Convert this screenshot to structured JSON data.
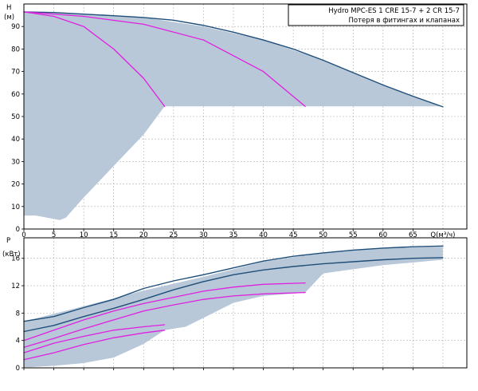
{
  "legend": {
    "line1": "Hydro MPC-ES 1 CRE 15-7  +  2 CR 15-7",
    "line2": "Потеря в фитингах и клапанах"
  },
  "colors": {
    "area": "#B8C8D8",
    "grid": "#B0B0B0",
    "system_curve": "#1F4E79",
    "pump_curve": "#E020E0",
    "axis": "#000000"
  },
  "chart_data": [
    {
      "type": "line",
      "name": "head",
      "ylabel_top": "H",
      "ylabel_unit": "(м)",
      "xlabel": "Q(м³/ч)",
      "xlim": [
        0,
        74
      ],
      "ylim": [
        0,
        100
      ],
      "xticks": [
        0,
        5,
        10,
        15,
        20,
        25,
        30,
        35,
        40,
        45,
        50,
        55,
        60,
        65
      ],
      "xtick_labels": [
        "0",
        "5",
        "10",
        "15",
        "20",
        "25",
        "30",
        "35",
        "40",
        "45",
        "50",
        "55",
        "60",
        "65",
        "Q(м³/ч)"
      ],
      "yticks": [
        0,
        10,
        20,
        30,
        40,
        50,
        60,
        70,
        80,
        90
      ],
      "grid": true,
      "area": {
        "upper": [
          [
            0,
            96.5
          ],
          [
            10,
            95.5
          ],
          [
            20,
            94
          ],
          [
            30,
            90
          ],
          [
            40,
            84
          ],
          [
            50,
            75
          ],
          [
            60,
            64
          ],
          [
            70,
            54.3
          ]
        ],
        "lower": [
          [
            70,
            54.5
          ],
          [
            23.5,
            54.5
          ],
          [
            20,
            42
          ],
          [
            15,
            28
          ],
          [
            10,
            14
          ],
          [
            7,
            5
          ],
          [
            6,
            4
          ],
          [
            2,
            6
          ],
          [
            0,
            6
          ]
        ]
      },
      "series": [
        {
          "role": "max",
          "color": "dark",
          "points": [
            [
              0,
              96.5
            ],
            [
              5,
              96.2
            ],
            [
              10,
              95.5
            ],
            [
              15,
              94.8
            ],
            [
              20,
              94
            ],
            [
              25,
              92.8
            ],
            [
              30,
              90.5
            ],
            [
              35,
              87.5
            ],
            [
              40,
              84
            ],
            [
              45,
              80
            ],
            [
              50,
              75
            ],
            [
              55,
              69.5
            ],
            [
              60,
              64
            ],
            [
              65,
              59
            ],
            [
              70,
              54.3
            ]
          ]
        },
        {
          "role": "pump-1",
          "color": "magenta",
          "points": [
            [
              0,
              96.5
            ],
            [
              5,
              94.5
            ],
            [
              10,
              90
            ],
            [
              15,
              80
            ],
            [
              20,
              67
            ],
            [
              23.5,
              54.5
            ]
          ]
        },
        {
          "role": "pump-2",
          "color": "magenta",
          "points": [
            [
              0,
              96.5
            ],
            [
              10,
              94.5
            ],
            [
              20,
              91
            ],
            [
              30,
              84
            ],
            [
              40,
              70
            ],
            [
              47,
              54.5
            ]
          ]
        }
      ]
    },
    {
      "type": "line",
      "name": "power",
      "ylabel_top": "P",
      "ylabel_unit": "(кВт)",
      "xlim": [
        0,
        74
      ],
      "ylim": [
        0,
        19
      ],
      "xticks": [
        0,
        5,
        10,
        15,
        20,
        25,
        30,
        35,
        40,
        45,
        50,
        55,
        60,
        65
      ],
      "yticks": [
        0,
        4,
        8,
        12,
        16
      ],
      "grid": true,
      "area": {
        "upper": [
          [
            0,
            6.8
          ],
          [
            10,
            9
          ],
          [
            20,
            11.3
          ],
          [
            30,
            13.3
          ],
          [
            40,
            15.5
          ],
          [
            50,
            16.8
          ],
          [
            60,
            17.5
          ],
          [
            70,
            17.7
          ]
        ],
        "lower": [
          [
            70,
            15.8
          ],
          [
            60,
            15
          ],
          [
            50,
            13.8
          ],
          [
            47,
            11
          ],
          [
            40,
            10.5
          ],
          [
            35,
            9.5
          ],
          [
            30,
            7.3
          ],
          [
            27,
            6
          ],
          [
            23.5,
            5.5
          ],
          [
            20,
            3.5
          ],
          [
            15,
            1.5
          ],
          [
            10,
            0.7
          ],
          [
            5,
            0.3
          ],
          [
            1,
            0.1
          ],
          [
            0,
            0.1
          ]
        ]
      },
      "series": [
        {
          "role": "max-upper",
          "color": "dark",
          "points": [
            [
              0,
              6.8
            ],
            [
              5,
              7.5
            ],
            [
              10,
              8.8
            ],
            [
              15,
              10
            ],
            [
              20,
              11.6
            ],
            [
              25,
              12.7
            ],
            [
              30,
              13.6
            ],
            [
              35,
              14.6
            ],
            [
              40,
              15.6
            ],
            [
              45,
              16.3
            ],
            [
              50,
              16.8
            ],
            [
              55,
              17.2
            ],
            [
              60,
              17.5
            ],
            [
              65,
              17.7
            ],
            [
              70,
              17.8
            ]
          ]
        },
        {
          "role": "max-lower",
          "color": "dark",
          "points": [
            [
              0,
              5.3
            ],
            [
              5,
              6.2
            ],
            [
              10,
              7.5
            ],
            [
              15,
              8.7
            ],
            [
              20,
              10
            ],
            [
              25,
              11.4
            ],
            [
              30,
              12.6
            ],
            [
              35,
              13.6
            ],
            [
              40,
              14.3
            ],
            [
              45,
              14.8
            ],
            [
              50,
              15.2
            ],
            [
              55,
              15.5
            ],
            [
              60,
              15.8
            ],
            [
              65,
              16
            ],
            [
              70,
              16.1
            ]
          ]
        },
        {
          "role": "pump-a",
          "color": "magenta",
          "points": [
            [
              0,
              4
            ],
            [
              5,
              5.5
            ],
            [
              10,
              7
            ],
            [
              15,
              8.3
            ],
            [
              20,
              9.4
            ],
            [
              25,
              10.3
            ],
            [
              30,
              11.2
            ],
            [
              35,
              11.8
            ],
            [
              40,
              12.2
            ],
            [
              47,
              12.4
            ]
          ]
        },
        {
          "role": "pump-b",
          "color": "magenta",
          "points": [
            [
              0,
              3
            ],
            [
              5,
              4.3
            ],
            [
              10,
              5.7
            ],
            [
              15,
              7
            ],
            [
              20,
              8.3
            ],
            [
              25,
              9.2
            ],
            [
              30,
              10
            ],
            [
              35,
              10.5
            ],
            [
              40,
              10.8
            ],
            [
              47,
              11
            ]
          ]
        },
        {
          "role": "pump-c",
          "color": "magenta",
          "points": [
            [
              0,
              2.2
            ],
            [
              5,
              3.6
            ],
            [
              10,
              4.6
            ],
            [
              15,
              5.5
            ],
            [
              20,
              6
            ],
            [
              23.5,
              6.3
            ]
          ]
        },
        {
          "role": "pump-d",
          "color": "magenta",
          "points": [
            [
              0,
              1.2
            ],
            [
              5,
              2.2
            ],
            [
              10,
              3.4
            ],
            [
              15,
              4.4
            ],
            [
              20,
              5.1
            ],
            [
              23.5,
              5.5
            ]
          ]
        }
      ]
    }
  ]
}
